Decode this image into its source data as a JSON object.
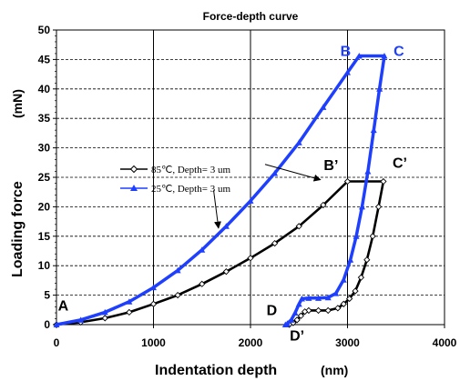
{
  "chart_data": {
    "type": "line",
    "title": "Force-depth curve",
    "xlabel": "Indentation depth",
    "xunit": "(nm)",
    "ylabel": "Loading force",
    "yunit": "(mN)",
    "xlim": [
      0,
      4000
    ],
    "ylim": [
      0,
      50
    ],
    "xticks": [
      0,
      1000,
      2000,
      3000,
      4000
    ],
    "yticks": [
      0,
      5,
      10,
      15,
      20,
      25,
      30,
      35,
      40,
      45,
      50
    ],
    "grid": "solid vertical at x=1000,2000,3000; dashed horizontal every 5 mN",
    "series": [
      {
        "name": "85℃, Depth= 3 um",
        "marker": "open-diamond",
        "color": "#000000",
        "loading": [
          [
            0,
            0
          ],
          [
            250,
            0.4
          ],
          [
            500,
            1.1
          ],
          [
            750,
            2.1
          ],
          [
            1000,
            3.5
          ],
          [
            1250,
            5.0
          ],
          [
            1500,
            6.9
          ],
          [
            1750,
            9.0
          ],
          [
            2000,
            11.3
          ],
          [
            2250,
            13.8
          ],
          [
            2500,
            16.7
          ],
          [
            2750,
            20.3
          ],
          [
            3000,
            24.3
          ]
        ],
        "hold": [
          [
            3000,
            24.3
          ],
          [
            3370,
            24.3
          ]
        ],
        "unloading": [
          [
            3370,
            24.3
          ],
          [
            3320,
            20.0
          ],
          [
            3260,
            15.0
          ],
          [
            3200,
            11.0
          ],
          [
            3140,
            8.0
          ],
          [
            3080,
            5.7
          ],
          [
            3020,
            4.4
          ],
          [
            2960,
            3.5
          ],
          [
            2900,
            2.8
          ],
          [
            2800,
            2.4
          ],
          [
            2700,
            2.4
          ],
          [
            2600,
            2.4
          ],
          [
            2560,
            2.2
          ],
          [
            2520,
            1.5
          ],
          [
            2480,
            0.8
          ],
          [
            2440,
            0.3
          ],
          [
            2400,
            0
          ]
        ]
      },
      {
        "name": "25℃, Depth= 3 um",
        "marker": "filled-triangle",
        "color": "#1f3fff",
        "loading": [
          [
            0,
            0
          ],
          [
            250,
            0.8
          ],
          [
            500,
            2.1
          ],
          [
            750,
            3.9
          ],
          [
            1000,
            6.3
          ],
          [
            1250,
            9.2
          ],
          [
            1500,
            12.7
          ],
          [
            1750,
            16.7
          ],
          [
            2000,
            21.0
          ],
          [
            2250,
            25.7
          ],
          [
            2500,
            30.9
          ],
          [
            2750,
            36.9
          ],
          [
            3000,
            42.8
          ],
          [
            3120,
            45.6
          ]
        ],
        "hold": [
          [
            3120,
            45.6
          ],
          [
            3380,
            45.6
          ]
        ],
        "unloading": [
          [
            3380,
            45.6
          ],
          [
            3330,
            40.0
          ],
          [
            3270,
            33.0
          ],
          [
            3210,
            26.0
          ],
          [
            3150,
            20.0
          ],
          [
            3090,
            15.0
          ],
          [
            3030,
            11.0
          ],
          [
            2960,
            7.6
          ],
          [
            2880,
            5.3
          ],
          [
            2800,
            4.6
          ],
          [
            2700,
            4.5
          ],
          [
            2600,
            4.5
          ],
          [
            2530,
            4.4
          ],
          [
            2500,
            3.5
          ],
          [
            2460,
            2.0
          ],
          [
            2420,
            0.8
          ],
          [
            2380,
            0.2
          ],
          [
            2360,
            0
          ]
        ]
      }
    ],
    "annotations": [
      {
        "text": "A",
        "x": 70,
        "y": 2.4,
        "color": "#000000"
      },
      {
        "text": "B",
        "x": 2980,
        "y": 45.6,
        "color": "#1f3fff"
      },
      {
        "text": "C",
        "x": 3530,
        "y": 45.6,
        "color": "#1f3fff"
      },
      {
        "text": "B’",
        "x": 2830,
        "y": 26.2,
        "color": "#000000"
      },
      {
        "text": "C’",
        "x": 3540,
        "y": 26.6,
        "color": "#000000"
      },
      {
        "text": "D",
        "x": 2220,
        "y": 1.6,
        "color": "#000000"
      },
      {
        "text": "D’",
        "x": 2480,
        "y": -2.7,
        "color": "#000000"
      }
    ],
    "legend_pointers": [
      {
        "series": 0,
        "from": [
          2150,
          27.2
        ],
        "to": [
          2720,
          24.6
        ]
      },
      {
        "series": 1,
        "from": [
          1620,
          22.8
        ],
        "to": [
          1670,
          16.4
        ]
      }
    ]
  }
}
